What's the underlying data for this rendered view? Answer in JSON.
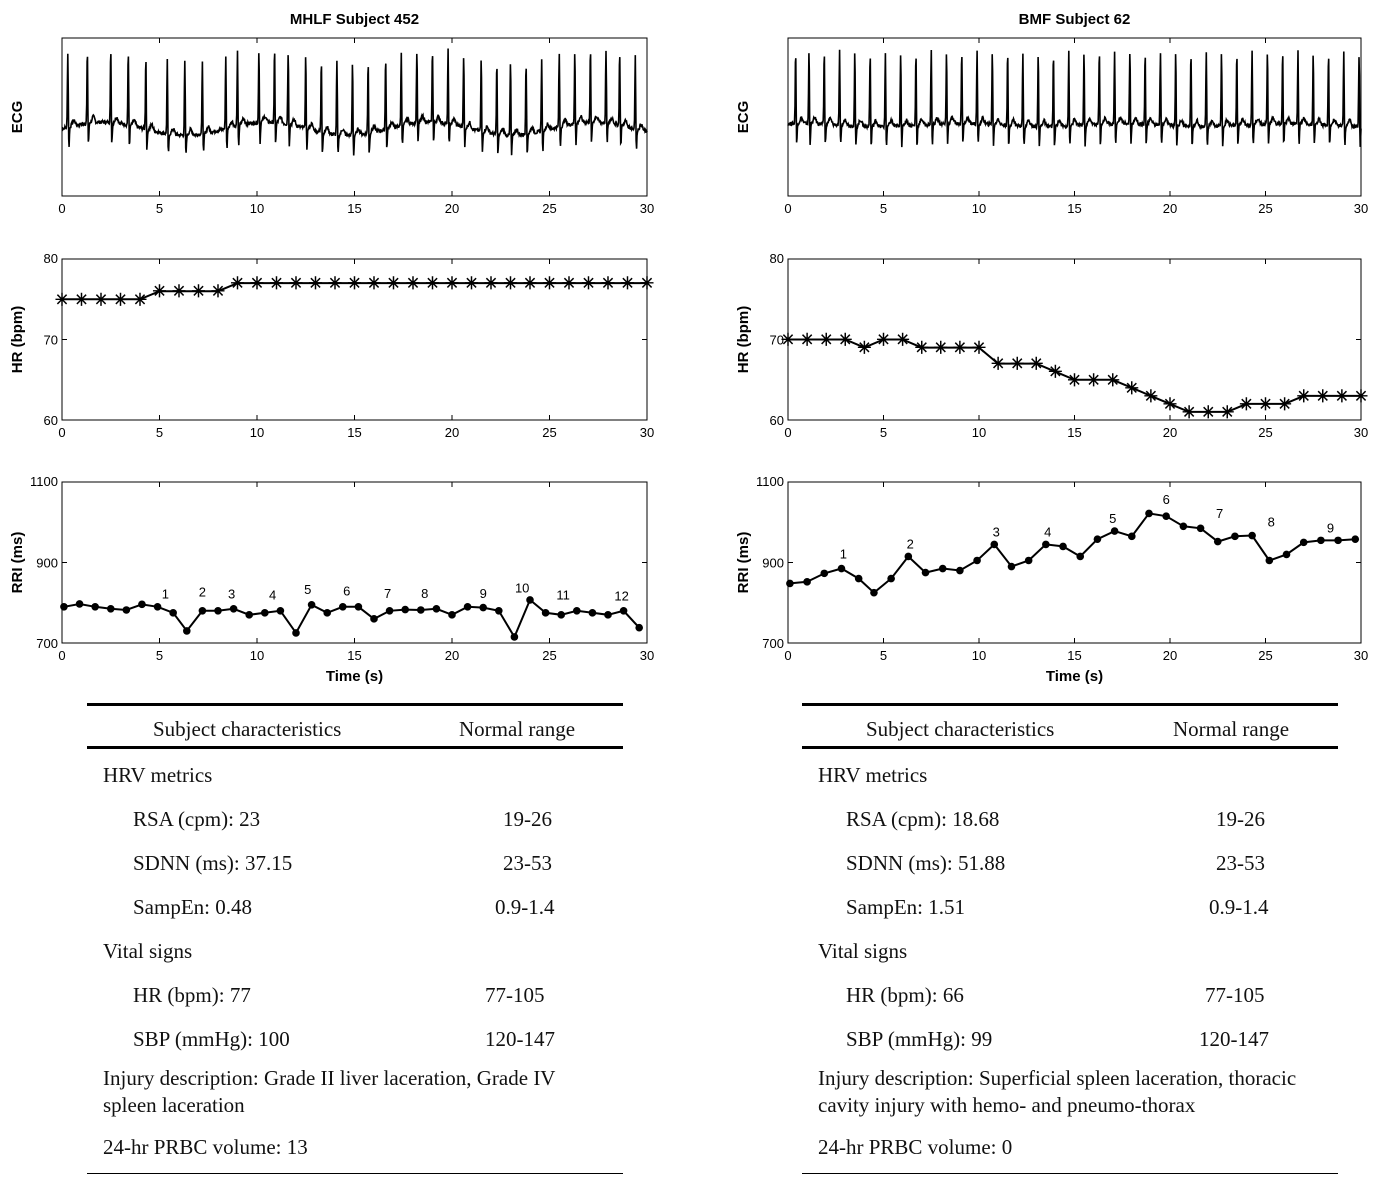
{
  "chart_data": [
    {
      "panel": "MHLF Subject 452",
      "title": "MHLF Subject 452",
      "charts": [
        {
          "type": "line",
          "ylabel": "ECG",
          "xlim": [
            0,
            30
          ],
          "xticks": [
            0,
            5,
            10,
            15,
            20,
            25,
            30
          ],
          "yticks": [],
          "signal": {
            "baseline": -0.05,
            "wander": 0.09,
            "beats": [
              0.3,
              1.3,
              2.5,
              3.4,
              4.3,
              5.4,
              6.3,
              7.2,
              8.4,
              9.0,
              10.1,
              10.9,
              11.6,
              12.5,
              13.3,
              14.1,
              14.9,
              15.7,
              16.6,
              17.4,
              18.2,
              19.0,
              19.8,
              20.6,
              21.5,
              22.3,
              23.0,
              23.8,
              24.6,
              25.5,
              26.3,
              27.1,
              27.9,
              28.6,
              29.4
            ]
          }
        },
        {
          "type": "line",
          "ylabel": "HR (bpm)",
          "xlim": [
            0,
            30
          ],
          "ylim": [
            60,
            80
          ],
          "xticks": [
            0,
            5,
            10,
            15,
            20,
            25,
            30
          ],
          "yticks": [
            60,
            70,
            80
          ],
          "marker": "star",
          "x": [
            0,
            1,
            2,
            3,
            4,
            5,
            6,
            7,
            8,
            9,
            10,
            11,
            12,
            13,
            14,
            15,
            16,
            17,
            18,
            19,
            20,
            21,
            22,
            23,
            24,
            25,
            26,
            27,
            28,
            29,
            30
          ],
          "y": [
            75,
            75,
            75,
            75,
            75,
            76,
            76,
            76,
            76,
            77,
            77,
            77,
            77,
            77,
            77,
            77,
            77,
            77,
            77,
            77,
            77,
            77,
            77,
            77,
            77,
            77,
            77,
            77,
            77,
            77,
            77
          ]
        },
        {
          "type": "line",
          "ylabel": "RRI (ms)",
          "xlabel": "Time (s)",
          "xlim": [
            0,
            30
          ],
          "ylim": [
            700,
            1100
          ],
          "xticks": [
            0,
            5,
            10,
            15,
            20,
            25,
            30
          ],
          "yticks": [
            700,
            900,
            1100
          ],
          "marker": "dot",
          "x": [
            0.1,
            0.9,
            1.7,
            2.5,
            3.3,
            4.1,
            4.9,
            5.7,
            6.4,
            7.2,
            8.0,
            8.8,
            9.6,
            10.4,
            11.2,
            12.0,
            12.8,
            13.6,
            14.4,
            15.2,
            16.0,
            16.8,
            17.6,
            18.4,
            19.2,
            20.0,
            20.8,
            21.6,
            22.4,
            23.2,
            24.0,
            24.8,
            25.6,
            26.4,
            27.2,
            28.0,
            28.8,
            29.6
          ],
          "y": [
            790,
            797,
            790,
            785,
            782,
            796,
            790,
            775,
            730,
            780,
            780,
            785,
            770,
            775,
            780,
            725,
            795,
            775,
            790,
            790,
            760,
            780,
            783,
            782,
            785,
            770,
            790,
            788,
            780,
            715,
            807,
            775,
            770,
            780,
            775,
            770,
            780,
            738
          ],
          "annotations": [
            {
              "text": "1",
              "x": 5.3,
              "y": 810
            },
            {
              "text": "2",
              "x": 7.2,
              "y": 815
            },
            {
              "text": "3",
              "x": 8.7,
              "y": 810
            },
            {
              "text": "4",
              "x": 10.8,
              "y": 808
            },
            {
              "text": "5",
              "x": 12.6,
              "y": 822
            },
            {
              "text": "6",
              "x": 14.6,
              "y": 818
            },
            {
              "text": "7",
              "x": 16.7,
              "y": 812
            },
            {
              "text": "8",
              "x": 18.6,
              "y": 812
            },
            {
              "text": "9",
              "x": 21.6,
              "y": 812
            },
            {
              "text": "10",
              "x": 23.6,
              "y": 826
            },
            {
              "text": "11",
              "x": 25.7,
              "y": 808
            },
            {
              "text": "12",
              "x": 28.7,
              "y": 805
            }
          ]
        }
      ]
    },
    {
      "panel": "BMF Subject 62",
      "title": "BMF Subject 62",
      "charts": [
        {
          "type": "line",
          "ylabel": "ECG",
          "xlim": [
            0,
            30
          ],
          "xticks": [
            0,
            5,
            10,
            15,
            20,
            25,
            30
          ],
          "yticks": [],
          "signal": {
            "baseline": 0.0,
            "wander": 0.02,
            "beats": [
              0.4,
              1.1,
              1.9,
              2.7,
              3.5,
              4.3,
              5.1,
              5.9,
              6.7,
              7.5,
              8.3,
              9.1,
              9.9,
              10.7,
              11.5,
              12.3,
              13.1,
              13.9,
              14.7,
              15.5,
              16.3,
              17.1,
              17.9,
              18.7,
              19.5,
              20.3,
              21.1,
              21.9,
              22.7,
              23.5,
              24.3,
              25.1,
              25.9,
              26.7,
              27.5,
              28.3,
              29.1,
              29.9
            ]
          }
        },
        {
          "type": "line",
          "ylabel": "HR (bpm)",
          "xlim": [
            0,
            30
          ],
          "ylim": [
            60,
            80
          ],
          "xticks": [
            0,
            5,
            10,
            15,
            20,
            25,
            30
          ],
          "yticks": [
            60,
            70,
            80
          ],
          "marker": "star",
          "x": [
            0,
            1,
            2,
            3,
            4,
            5,
            6,
            7,
            8,
            9,
            10,
            11,
            12,
            13,
            14,
            15,
            16,
            17,
            18,
            19,
            20,
            21,
            22,
            23,
            24,
            25,
            26,
            27,
            28,
            29,
            30
          ],
          "y": [
            70,
            70,
            70,
            70,
            69,
            70,
            70,
            69,
            69,
            69,
            69,
            67,
            67,
            67,
            66,
            65,
            65,
            65,
            64,
            63,
            62,
            61,
            61,
            61,
            62,
            62,
            62,
            63,
            63,
            63,
            63
          ]
        },
        {
          "type": "line",
          "ylabel": "RRI (ms)",
          "xlabel": "Time (s)",
          "xlim": [
            0,
            30
          ],
          "ylim": [
            700,
            1100
          ],
          "xticks": [
            0,
            5,
            10,
            15,
            20,
            25,
            30
          ],
          "yticks": [
            700,
            900,
            1100
          ],
          "marker": "dot",
          "x": [
            0.1,
            1.0,
            1.9,
            2.8,
            3.7,
            4.5,
            5.4,
            6.3,
            7.2,
            8.1,
            9.0,
            9.9,
            10.8,
            11.7,
            12.6,
            13.5,
            14.4,
            15.3,
            16.2,
            17.1,
            18.0,
            18.9,
            19.8,
            20.7,
            21.6,
            22.5,
            23.4,
            24.3,
            25.2,
            26.1,
            27.0,
            27.9,
            28.8,
            29.7
          ],
          "y": [
            848,
            852,
            873,
            885,
            860,
            825,
            860,
            915,
            875,
            885,
            880,
            905,
            945,
            890,
            905,
            945,
            940,
            915,
            958,
            978,
            965,
            1022,
            1015,
            990,
            985,
            952,
            965,
            967,
            905,
            920,
            950,
            955,
            955,
            958
          ],
          "annotations": [
            {
              "text": "1",
              "x": 2.9,
              "y": 910
            },
            {
              "text": "2",
              "x": 6.4,
              "y": 935
            },
            {
              "text": "3",
              "x": 10.9,
              "y": 965
            },
            {
              "text": "4",
              "x": 13.6,
              "y": 965
            },
            {
              "text": "5",
              "x": 17.0,
              "y": 998
            },
            {
              "text": "6",
              "x": 19.8,
              "y": 1045
            },
            {
              "text": "7",
              "x": 22.6,
              "y": 1010
            },
            {
              "text": "8",
              "x": 25.3,
              "y": 990
            },
            {
              "text": "9",
              "x": 28.4,
              "y": 975
            }
          ]
        }
      ]
    }
  ],
  "tables": [
    {
      "col1_header": "Subject characteristics",
      "col2_header": "Normal range",
      "section1": "HRV metrics",
      "rsa": "RSA (cpm): 23",
      "rsa_range": "19-26",
      "sdnn": "SDNN (ms): 37.15",
      "sdnn_range": "23-53",
      "sampen": "SampEn: 0.48",
      "sampen_range": "0.9-1.4",
      "section2": "Vital signs",
      "hr": "HR (bpm): 77",
      "hr_range": "77-105",
      "sbp": "SBP (mmHg): 100",
      "sbp_range": "120-147",
      "injury": "Injury description: Grade II liver laceration, Grade IV spleen laceration",
      "prbc": "24-hr PRBC volume: 13"
    },
    {
      "col1_header": "Subject characteristics",
      "col2_header": "Normal range",
      "section1": "HRV metrics",
      "rsa": "RSA (cpm): 18.68",
      "rsa_range": "19-26",
      "sdnn": "SDNN (ms): 51.88",
      "sdnn_range": "23-53",
      "sampen": "SampEn: 1.51",
      "sampen_range": "0.9-1.4",
      "section2": "Vital signs",
      "hr": "HR (bpm): 66",
      "hr_range": "77-105",
      "sbp": "SBP (mmHg): 99",
      "sbp_range": "120-147",
      "injury": "Injury description: Superficial spleen laceration, thoracic cavity injury with hemo- and pneumo-thorax",
      "prbc": "24-hr PRBC volume: 0"
    }
  ]
}
